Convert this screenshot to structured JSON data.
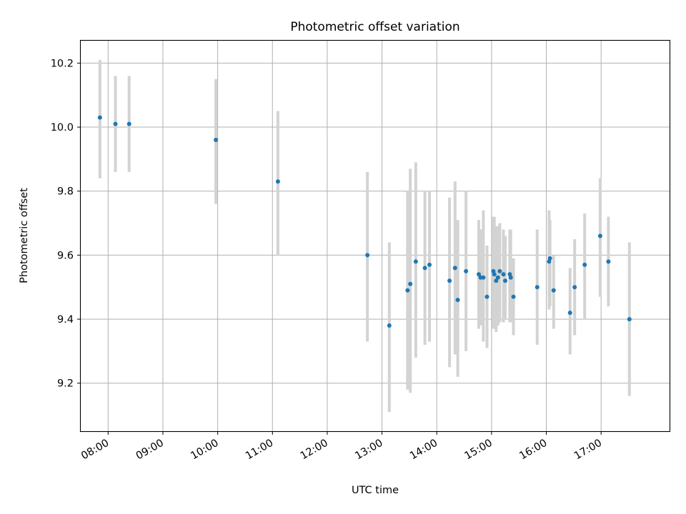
{
  "chart_data": {
    "type": "scatter",
    "title": "Photometric offset variation",
    "xlabel": "UTC time",
    "ylabel": "Photometric offset",
    "xlim": [
      "07:30",
      "18:15"
    ],
    "ylim": [
      9.05,
      10.27
    ],
    "x_ticks": [
      "08:00",
      "09:00",
      "10:00",
      "11:00",
      "12:00",
      "13:00",
      "14:00",
      "15:00",
      "16:00",
      "17:00"
    ],
    "y_ticks": [
      "9.2",
      "9.4",
      "9.6",
      "9.8",
      "10.0",
      "10.2"
    ],
    "grid": true,
    "colors": {
      "point": "#1f77b4",
      "error_bar": "#d3d3d3"
    },
    "points": [
      {
        "x": "07:51",
        "y": 10.03,
        "lo": 9.84,
        "hi": 10.21
      },
      {
        "x": "08:08",
        "y": 10.01,
        "lo": 9.86,
        "hi": 10.16
      },
      {
        "x": "08:23",
        "y": 10.01,
        "lo": 9.86,
        "hi": 10.16
      },
      {
        "x": "09:58",
        "y": 9.96,
        "lo": 9.76,
        "hi": 10.15
      },
      {
        "x": "11:06",
        "y": 9.83,
        "lo": 9.6,
        "hi": 10.05
      },
      {
        "x": "12:44",
        "y": 9.6,
        "lo": 9.33,
        "hi": 9.86
      },
      {
        "x": "13:08",
        "y": 9.38,
        "lo": 9.11,
        "hi": 9.64
      },
      {
        "x": "13:28",
        "y": 9.49,
        "lo": 9.18,
        "hi": 9.8
      },
      {
        "x": "13:31",
        "y": 9.51,
        "lo": 9.17,
        "hi": 9.87
      },
      {
        "x": "13:37",
        "y": 9.58,
        "lo": 9.28,
        "hi": 9.89
      },
      {
        "x": "13:47",
        "y": 9.56,
        "lo": 9.32,
        "hi": 9.8
      },
      {
        "x": "13:52",
        "y": 9.57,
        "lo": 9.33,
        "hi": 9.8
      },
      {
        "x": "14:14",
        "y": 9.52,
        "lo": 9.25,
        "hi": 9.78
      },
      {
        "x": "14:20",
        "y": 9.56,
        "lo": 9.29,
        "hi": 9.83
      },
      {
        "x": "14:23",
        "y": 9.46,
        "lo": 9.22,
        "hi": 9.71
      },
      {
        "x": "14:32",
        "y": 9.55,
        "lo": 9.3,
        "hi": 9.8
      },
      {
        "x": "14:46",
        "y": 9.54,
        "lo": 9.37,
        "hi": 9.71
      },
      {
        "x": "14:48",
        "y": 9.53,
        "lo": 9.38,
        "hi": 9.68
      },
      {
        "x": "14:51",
        "y": 9.53,
        "lo": 9.33,
        "hi": 9.74
      },
      {
        "x": "14:55",
        "y": 9.47,
        "lo": 9.31,
        "hi": 9.63
      },
      {
        "x": "15:02",
        "y": 9.55,
        "lo": 9.37,
        "hi": 9.72
      },
      {
        "x": "15:03",
        "y": 9.54,
        "lo": 9.37,
        "hi": 9.72
      },
      {
        "x": "15:05",
        "y": 9.52,
        "lo": 9.36,
        "hi": 9.69
      },
      {
        "x": "15:07",
        "y": 9.53,
        "lo": 9.38,
        "hi": 9.69
      },
      {
        "x": "15:09",
        "y": 9.55,
        "lo": 9.39,
        "hi": 9.7
      },
      {
        "x": "15:13",
        "y": 9.54,
        "lo": 9.39,
        "hi": 9.68
      },
      {
        "x": "15:15",
        "y": 9.52,
        "lo": 9.4,
        "hi": 9.66
      },
      {
        "x": "15:20",
        "y": 9.54,
        "lo": 9.39,
        "hi": 9.68
      },
      {
        "x": "15:21",
        "y": 9.53,
        "lo": 9.39,
        "hi": 9.68
      },
      {
        "x": "15:24",
        "y": 9.47,
        "lo": 9.35,
        "hi": 9.59
      },
      {
        "x": "15:50",
        "y": 9.5,
        "lo": 9.32,
        "hi": 9.68
      },
      {
        "x": "16:03",
        "y": 9.58,
        "lo": 9.43,
        "hi": 9.74
      },
      {
        "x": "16:04",
        "y": 9.59,
        "lo": 9.44,
        "hi": 9.71
      },
      {
        "x": "16:08",
        "y": 9.49,
        "lo": 9.37,
        "hi": 9.6
      },
      {
        "x": "16:26",
        "y": 9.42,
        "lo": 9.29,
        "hi": 9.56
      },
      {
        "x": "16:31",
        "y": 9.5,
        "lo": 9.35,
        "hi": 9.65
      },
      {
        "x": "16:42",
        "y": 9.57,
        "lo": 9.4,
        "hi": 9.73
      },
      {
        "x": "16:59",
        "y": 9.66,
        "lo": 9.47,
        "hi": 9.84
      },
      {
        "x": "17:08",
        "y": 9.58,
        "lo": 9.44,
        "hi": 9.72
      },
      {
        "x": "17:31",
        "y": 9.4,
        "lo": 9.16,
        "hi": 9.64
      }
    ]
  }
}
